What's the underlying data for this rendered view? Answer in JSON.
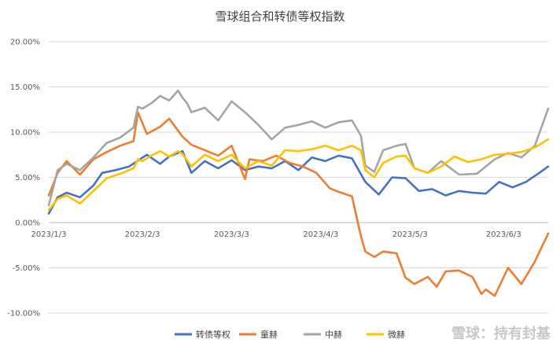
{
  "chart_data": {
    "type": "line",
    "title": "雪球组合和转债等权指数",
    "xlabel": "",
    "ylabel": "",
    "x_ticks": [
      "2023/1/3",
      "2023/2/3",
      "2023/3/3",
      "2023/4/3",
      "2023/5/3",
      "2023/6/3"
    ],
    "y_ticks": [
      "20.00%",
      "15.00%",
      "10.00%",
      "5.00%",
      "0.00%",
      "-5.00%",
      "-10.00%"
    ],
    "ylim": [
      -10,
      20
    ],
    "x_range": [
      0,
      112
    ],
    "x_tick_positions": [
      0,
      21,
      41,
      61,
      81,
      102
    ],
    "grid": "horizontal",
    "legend": "bottom",
    "series": [
      {
        "name": "转债等权",
        "color": "#4472c4",
        "x": [
          0,
          2,
          4,
          7,
          10,
          12,
          15,
          18,
          22,
          25,
          27,
          30,
          32,
          35,
          38,
          41,
          44,
          47,
          50,
          53,
          56,
          59,
          62,
          65,
          68,
          71,
          74,
          77,
          80,
          83,
          86,
          89,
          92,
          95,
          98,
          101,
          104,
          107,
          110,
          112
        ],
        "values": [
          1.0,
          2.8,
          3.3,
          2.8,
          4.1,
          5.5,
          5.8,
          6.2,
          7.5,
          6.5,
          7.3,
          7.9,
          5.5,
          6.8,
          6.0,
          6.9,
          5.8,
          6.2,
          6.0,
          6.8,
          5.8,
          7.2,
          6.8,
          7.4,
          7.1,
          4.5,
          3.1,
          5.0,
          4.9,
          3.5,
          3.7,
          3.0,
          3.5,
          3.3,
          3.2,
          4.5,
          3.9,
          4.5,
          5.5,
          6.2
        ]
      },
      {
        "name": "童赫",
        "color": "#ed7d31",
        "x": [
          0,
          2,
          4,
          7,
          10,
          13,
          16,
          19,
          20,
          21,
          22,
          25,
          27,
          30,
          32,
          35,
          38,
          41,
          44,
          45,
          48,
          51,
          54,
          57,
          60,
          63,
          65,
          68,
          70,
          71,
          73,
          75,
          78,
          80,
          82,
          85,
          87,
          89,
          92,
          95,
          97,
          98,
          100,
          103,
          106,
          109,
          112
        ],
        "values": [
          3.0,
          5.5,
          6.8,
          5.3,
          7.0,
          7.8,
          8.5,
          9.0,
          12.2,
          11.0,
          9.8,
          10.6,
          11.5,
          9.5,
          8.6,
          8.0,
          7.4,
          8.5,
          4.8,
          7.0,
          6.8,
          7.4,
          6.6,
          6.2,
          5.5,
          3.8,
          3.4,
          2.9,
          -1.5,
          -3.2,
          -3.8,
          -3.2,
          -3.4,
          -6.1,
          -6.8,
          -6.0,
          -7.1,
          -5.4,
          -5.3,
          -6.0,
          -7.9,
          -7.4,
          -8.1,
          -5.0,
          -6.8,
          -4.3,
          -1.2
        ]
      },
      {
        "name": "中赫",
        "color": "#a5a5a5",
        "x": [
          0,
          2,
          4,
          7,
          10,
          13,
          16,
          19,
          20,
          21,
          23,
          25,
          27,
          29,
          30,
          31,
          32,
          35,
          38,
          41,
          44,
          47,
          50,
          53,
          56,
          59,
          62,
          65,
          68,
          70,
          71,
          73,
          75,
          78,
          80,
          82,
          85,
          88,
          92,
          96,
          100,
          103,
          106,
          109,
          112
        ],
        "values": [
          1.9,
          5.8,
          6.5,
          5.8,
          7.2,
          8.8,
          9.4,
          10.5,
          12.8,
          12.6,
          13.2,
          14.0,
          13.5,
          14.6,
          13.8,
          13.2,
          12.2,
          12.7,
          11.3,
          13.4,
          12.2,
          10.8,
          9.2,
          10.5,
          10.8,
          11.2,
          10.5,
          11.1,
          11.3,
          9.6,
          6.3,
          5.6,
          8.0,
          8.5,
          8.7,
          6.0,
          5.5,
          6.8,
          5.3,
          5.4,
          7.0,
          7.7,
          7.2,
          8.5,
          12.6
        ]
      },
      {
        "name": "微赫",
        "color": "#ffc000",
        "x": [
          0,
          2,
          4,
          7,
          10,
          13,
          16,
          19,
          20,
          21,
          23,
          25,
          27,
          29,
          30,
          32,
          35,
          38,
          41,
          44,
          47,
          50,
          53,
          56,
          59,
          62,
          65,
          68,
          70,
          71,
          73,
          75,
          78,
          80,
          82,
          85,
          88,
          91,
          94,
          97,
          100,
          103,
          106,
          109,
          112
        ],
        "values": [
          1.4,
          2.6,
          3.0,
          2.1,
          3.5,
          4.9,
          5.4,
          6.0,
          7.0,
          6.8,
          7.4,
          7.9,
          7.3,
          7.9,
          7.6,
          6.2,
          7.5,
          6.8,
          7.5,
          6.0,
          6.8,
          6.3,
          8.0,
          7.9,
          8.1,
          8.5,
          8.0,
          8.5,
          8.0,
          5.8,
          5.0,
          6.6,
          7.3,
          7.4,
          6.0,
          5.5,
          6.2,
          7.3,
          6.7,
          7.0,
          7.5,
          7.6,
          7.8,
          8.3,
          9.2
        ]
      }
    ]
  },
  "watermark": "雪球：持有封基"
}
